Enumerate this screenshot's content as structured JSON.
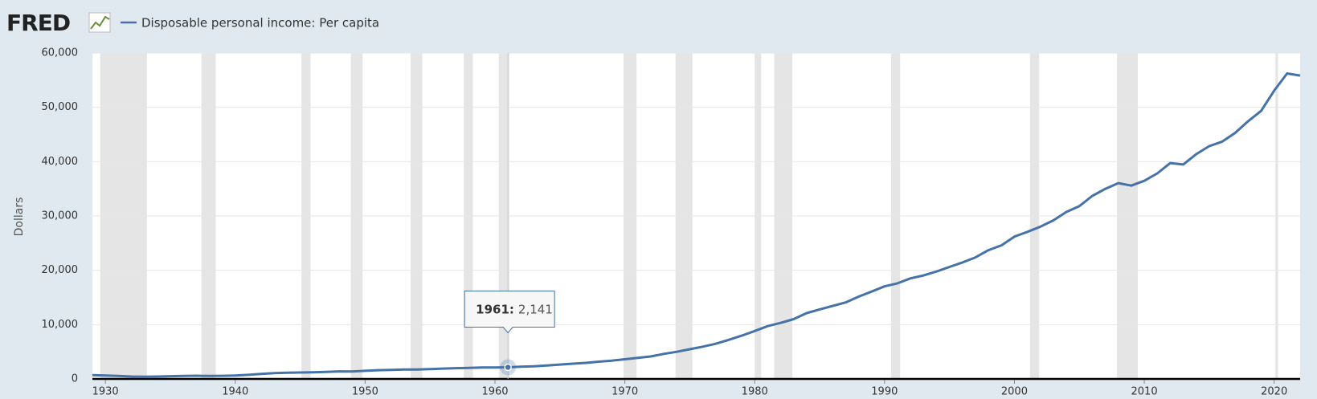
{
  "logo": "FRED",
  "chart_data": {
    "type": "line",
    "y_label": "Dollars",
    "x": [
      1929,
      1930,
      1931,
      1932,
      1933,
      1934,
      1935,
      1936,
      1937,
      1938,
      1939,
      1940,
      1941,
      1942,
      1943,
      1944,
      1945,
      1946,
      1947,
      1948,
      1949,
      1950,
      1951,
      1952,
      1953,
      1954,
      1955,
      1956,
      1957,
      1958,
      1959,
      1960,
      1961,
      1962,
      1963,
      1964,
      1965,
      1966,
      1967,
      1968,
      1969,
      1970,
      1971,
      1972,
      1973,
      1974,
      1975,
      1976,
      1977,
      1978,
      1979,
      1980,
      1981,
      1982,
      1983,
      1984,
      1985,
      1986,
      1987,
      1988,
      1989,
      1990,
      1991,
      1992,
      1993,
      1994,
      1995,
      1996,
      1997,
      1998,
      1999,
      2000,
      2001,
      2002,
      2003,
      2004,
      2005,
      2006,
      2007,
      2008,
      2009,
      2010,
      2011,
      2012,
      2013,
      2014,
      2015,
      2016,
      2017,
      2018,
      2019,
      2020,
      2021,
      2022
    ],
    "series": [
      {
        "name": "Disposable personal income: Per capita",
        "color": "#4572a7",
        "values": [
          700,
          630,
          560,
          440,
          410,
          450,
          500,
          560,
          590,
          540,
          580,
          620,
          750,
          930,
          1060,
          1140,
          1180,
          1220,
          1280,
          1390,
          1370,
          1490,
          1610,
          1660,
          1730,
          1740,
          1820,
          1910,
          1980,
          2020,
          2120,
          2100,
          2141,
          2240,
          2320,
          2490,
          2640,
          2810,
          2960,
          3170,
          3370,
          3620,
          3880,
          4140,
          4610,
          5000,
          5470,
          5940,
          6480,
          7190,
          7960,
          8830,
          9730,
          10310,
          11010,
          12120,
          12800,
          13430,
          14080,
          15150,
          16080,
          17040,
          17600,
          18510,
          19050,
          19770,
          20610,
          21440,
          22370,
          23700,
          24590,
          26200,
          27080,
          28040,
          29180,
          30740,
          31820,
          33700,
          35000,
          36050,
          35580,
          36480,
          37830,
          39740,
          39480,
          41380,
          42850,
          43680,
          45300,
          47450,
          49340,
          53070,
          56230,
          55850
        ]
      }
    ],
    "recessions": [
      [
        1929.6,
        1933.2
      ],
      [
        1937.4,
        1938.5
      ],
      [
        1945.1,
        1945.8
      ],
      [
        1948.9,
        1949.8
      ],
      [
        1953.5,
        1954.4
      ],
      [
        1957.6,
        1958.3
      ],
      [
        1960.3,
        1961.1
      ],
      [
        1969.9,
        1970.9
      ],
      [
        1973.9,
        1975.2
      ],
      [
        1980.0,
        1980.5
      ],
      [
        1981.5,
        1982.9
      ],
      [
        1990.5,
        1991.2
      ],
      [
        2001.2,
        2001.9
      ],
      [
        2007.9,
        2009.5
      ],
      [
        2020.1,
        2020.3
      ]
    ],
    "tooltip": {
      "title": "1961:",
      "text": "2,141"
    },
    "xlim": [
      1929,
      2022
    ],
    "xticks": [
      1930,
      1940,
      1950,
      1960,
      1970,
      1980,
      1990,
      2000,
      2010,
      2020
    ],
    "ylim": [
      0,
      60000
    ],
    "yticks": [
      0,
      {
        "value": 10000,
        "label": "10,000"
      },
      {
        "value": 20000,
        "label": "20,000"
      },
      {
        "value": 30000,
        "label": "30,000"
      },
      {
        "value": 40000,
        "label": "40,000"
      },
      {
        "value": 50000,
        "label": "50,000"
      },
      {
        "value": 60000,
        "label": "60,000"
      }
    ],
    "grid": true
  }
}
